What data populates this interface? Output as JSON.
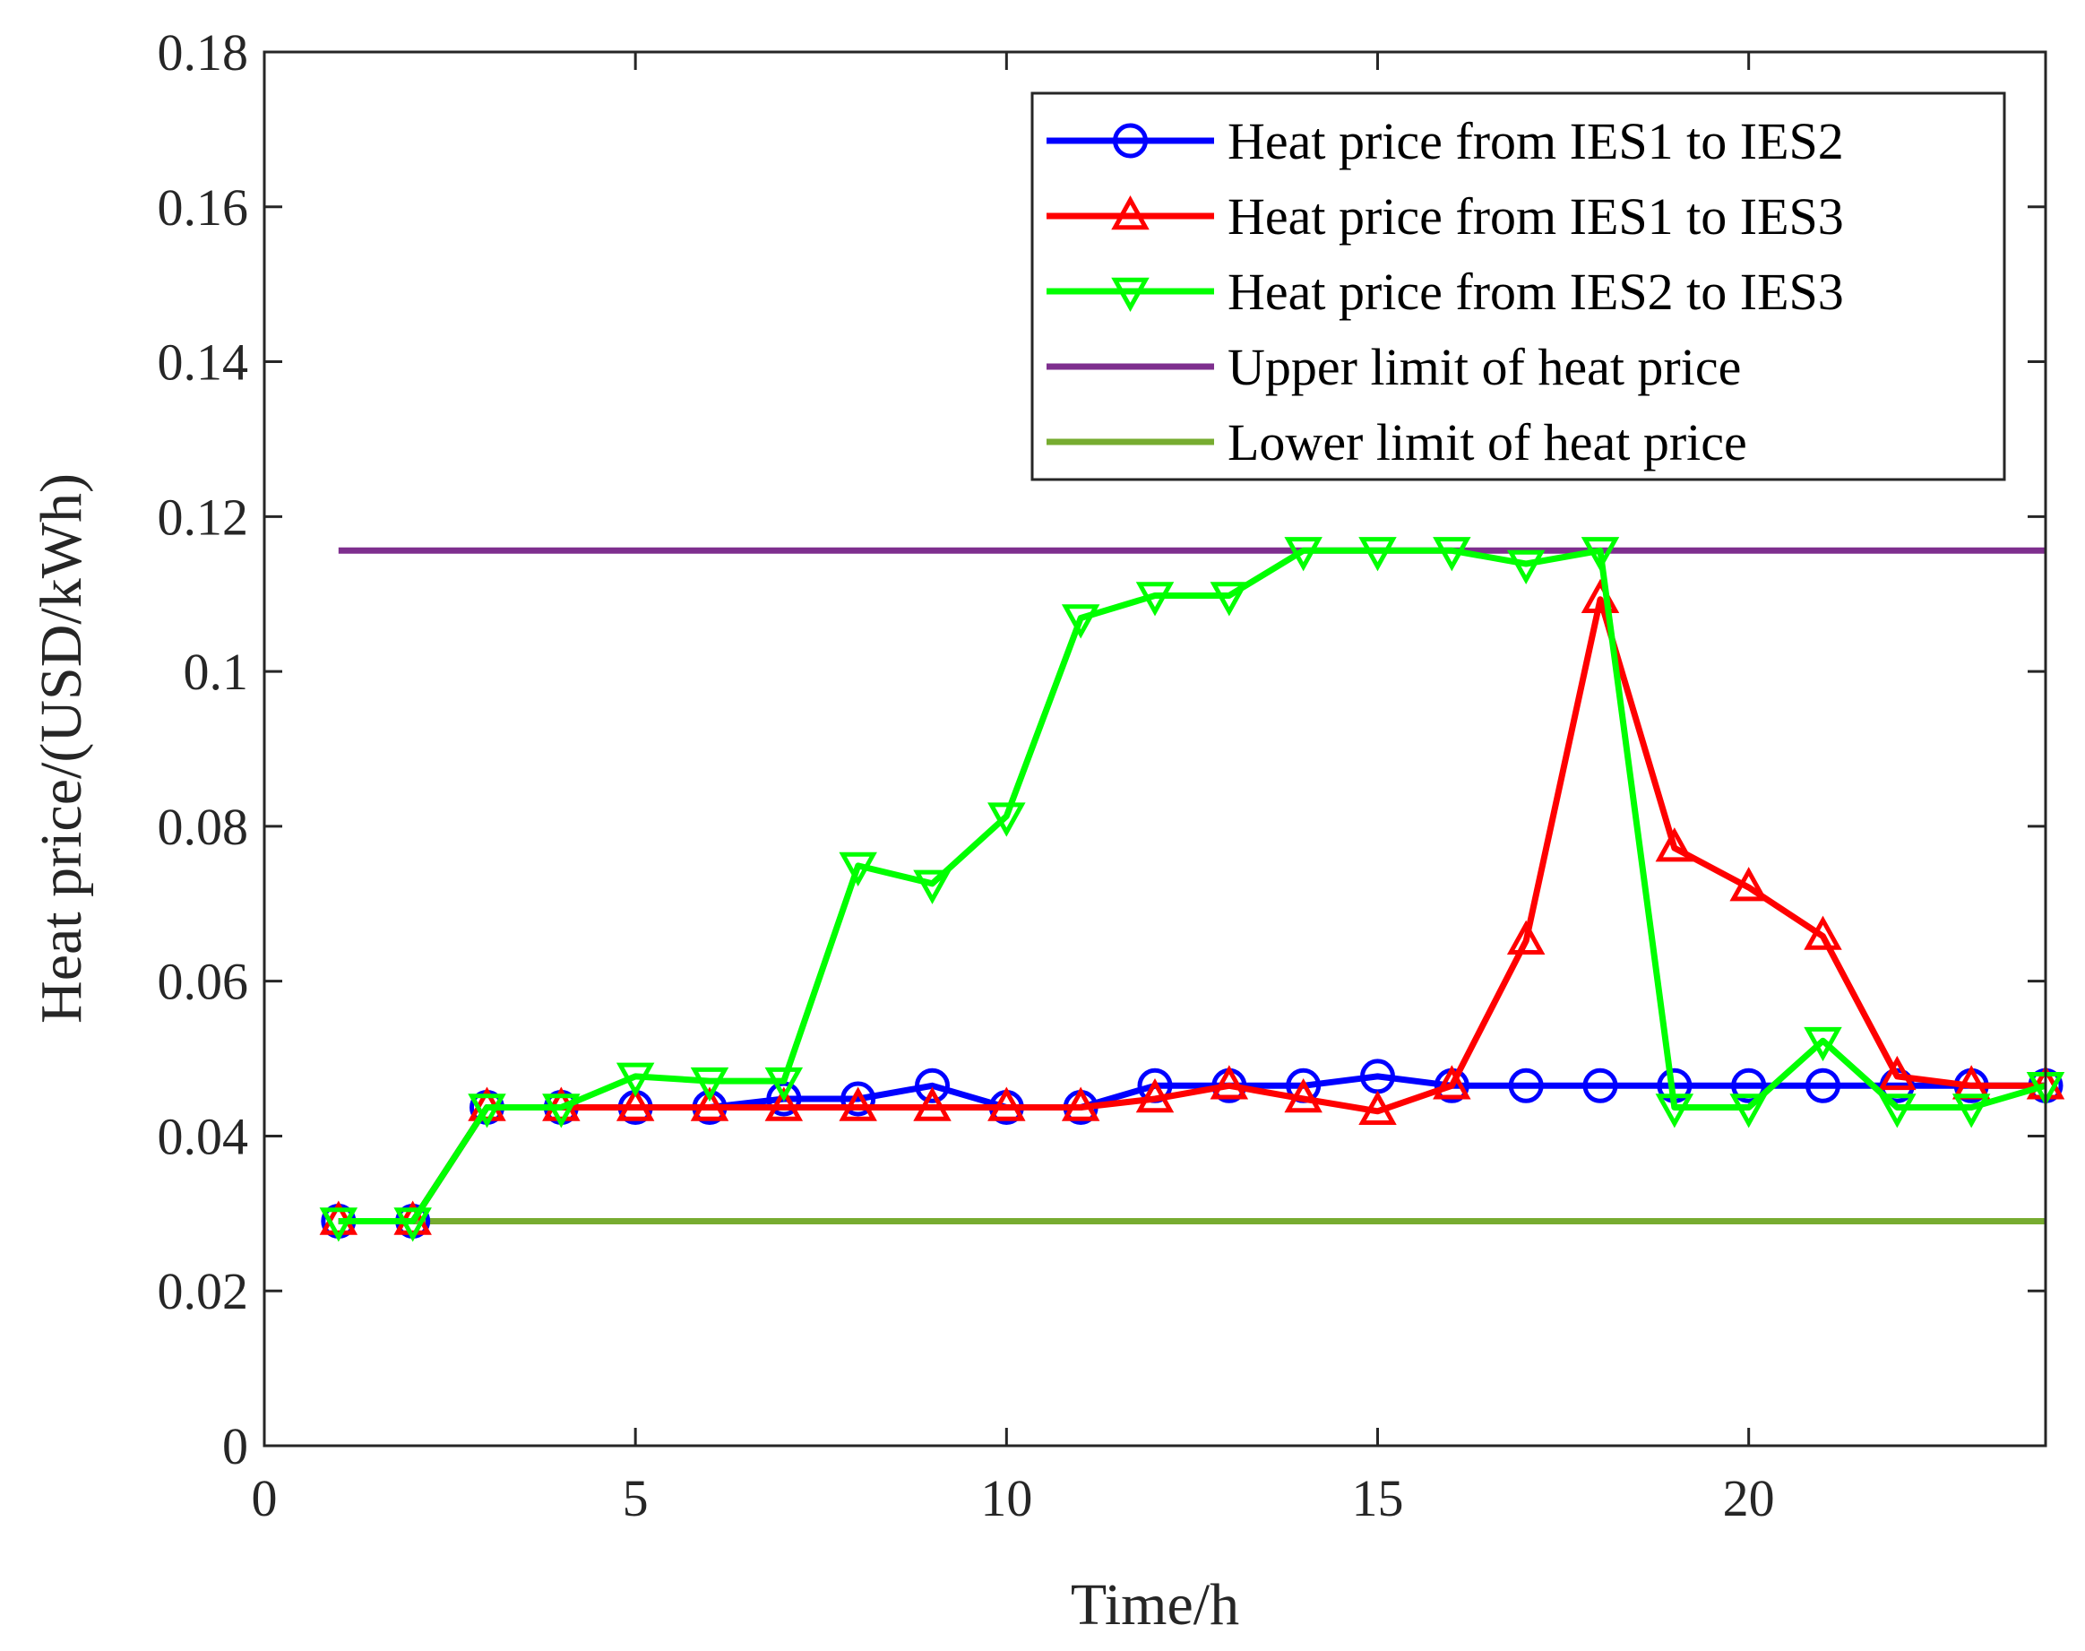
{
  "chart_data": {
    "type": "line",
    "title": "",
    "xlabel": "Time/h",
    "ylabel": "Heat price/(USD/kWh)",
    "xlim": [
      0,
      24
    ],
    "ylim": [
      0,
      0.18
    ],
    "xticks": [
      0,
      5,
      10,
      15,
      20
    ],
    "xtick_labels": [
      "0",
      "5",
      "10",
      "15",
      "20"
    ],
    "yticks": [
      0,
      0.02,
      0.04,
      0.06,
      0.08,
      0.1,
      0.12,
      0.14,
      0.16,
      0.18
    ],
    "ytick_labels": [
      "0",
      "0.02",
      "0.04",
      "0.06",
      "0.08",
      "0.1",
      "0.12",
      "0.14",
      "0.16",
      "0.18"
    ],
    "grid": false,
    "legend_position": "top-right",
    "x": [
      1,
      2,
      3,
      4,
      5,
      6,
      7,
      8,
      9,
      10,
      11,
      12,
      13,
      14,
      15,
      16,
      17,
      18,
      19,
      20,
      21,
      22,
      23,
      24
    ],
    "series": [
      {
        "name": "Heat price from IES1 to IES2",
        "color": "#0000ff",
        "marker": "circle",
        "values": [
          0.029,
          0.029,
          0.0437,
          0.0437,
          0.0437,
          0.0437,
          0.0448,
          0.0448,
          0.0465,
          0.0437,
          0.0437,
          0.0465,
          0.0465,
          0.0465,
          0.0477,
          0.0465,
          0.0465,
          0.0465,
          0.0465,
          0.0465,
          0.0465,
          0.0465,
          0.0465,
          0.0465
        ]
      },
      {
        "name": "Heat price from IES1 to IES3",
        "color": "#ff0000",
        "marker": "triangle-up",
        "values": [
          0.029,
          0.029,
          0.0437,
          0.0437,
          0.0437,
          0.0437,
          0.0437,
          0.0437,
          0.0437,
          0.0437,
          0.0437,
          0.0448,
          0.0465,
          0.0448,
          0.0432,
          0.0465,
          0.0652,
          0.1093,
          0.0772,
          0.0721,
          0.0658,
          0.0477,
          0.0465,
          0.0465
        ]
      },
      {
        "name": "Heat price from IES2 to IES3",
        "color": "#00ff00",
        "marker": "triangle-down",
        "values": [
          0.029,
          0.029,
          0.0437,
          0.0437,
          0.0477,
          0.0471,
          0.0471,
          0.0749,
          0.0726,
          0.0813,
          0.1069,
          0.1098,
          0.1098,
          0.1156,
          0.1156,
          0.1156,
          0.1139,
          0.1156,
          0.0437,
          0.0437,
          0.0523,
          0.0437,
          0.0437,
          0.0465
        ]
      },
      {
        "name": "Upper limit of heat price",
        "color": "#7e2f8e",
        "marker": "none",
        "values": [
          0.1156,
          0.1156,
          0.1156,
          0.1156,
          0.1156,
          0.1156,
          0.1156,
          0.1156,
          0.1156,
          0.1156,
          0.1156,
          0.1156,
          0.1156,
          0.1156,
          0.1156,
          0.1156,
          0.1156,
          0.1156,
          0.1156,
          0.1156,
          0.1156,
          0.1156,
          0.1156,
          0.1156
        ]
      },
      {
        "name": "Lower limit of heat price",
        "color": "#77ac30",
        "marker": "none",
        "values": [
          0.029,
          0.029,
          0.029,
          0.029,
          0.029,
          0.029,
          0.029,
          0.029,
          0.029,
          0.029,
          0.029,
          0.029,
          0.029,
          0.029,
          0.029,
          0.029,
          0.029,
          0.029,
          0.029,
          0.029,
          0.029,
          0.029,
          0.029,
          0.029
        ]
      }
    ]
  }
}
